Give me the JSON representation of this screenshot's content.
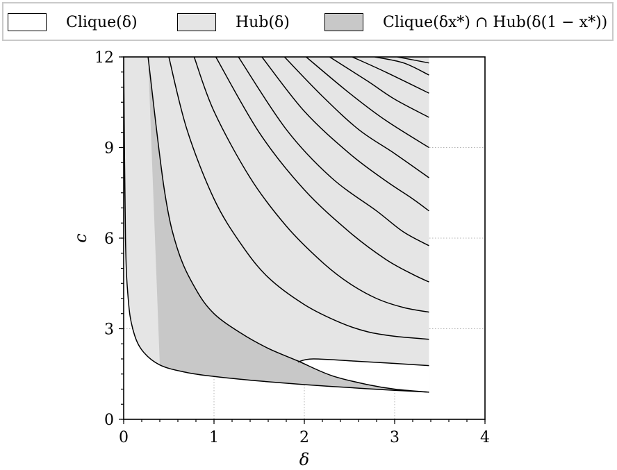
{
  "chart_data": {
    "type": "area",
    "xlabel": "δ",
    "ylabel": "c",
    "xlim": [
      0,
      4
    ],
    "ylim": [
      0,
      12
    ],
    "xticks": [
      0,
      1,
      2,
      3,
      4
    ],
    "yticks": [
      0,
      3,
      6,
      9,
      12
    ],
    "grid": true,
    "legend_position": "top",
    "legend": [
      {
        "label": "Clique(δ)",
        "color": "#ffffff"
      },
      {
        "label": "Hub(δ)",
        "color": "#e5e5e5"
      },
      {
        "label": "Clique(δx*) ∩ Hub(δ(1 − x*))",
        "color": "#c8c8c8"
      }
    ],
    "series": [
      {
        "values": [
          [
            0.0,
            12.0
          ],
          [
            0.02,
            6.0
          ],
          [
            0.05,
            4.0
          ],
          [
            0.1,
            3.0
          ],
          [
            0.2,
            2.3
          ],
          [
            0.4,
            1.8
          ],
          [
            0.7,
            1.55
          ],
          [
            1.0,
            1.42
          ],
          [
            1.5,
            1.27
          ],
          [
            2.0,
            1.15
          ],
          [
            2.5,
            1.05
          ],
          [
            3.0,
            0.96
          ],
          [
            3.38,
            0.9
          ]
        ]
      },
      {
        "values": [
          [
            0.27,
            12.0
          ],
          [
            0.45,
            7.6
          ],
          [
            0.6,
            5.6
          ],
          [
            0.8,
            4.3
          ],
          [
            1.0,
            3.5
          ],
          [
            1.3,
            2.85
          ],
          [
            1.6,
            2.35
          ],
          [
            1.93,
            1.93
          ],
          [
            2.3,
            1.45
          ],
          [
            2.7,
            1.15
          ],
          [
            3.0,
            1.0
          ],
          [
            3.38,
            0.9
          ]
        ]
      },
      {
        "values": [
          [
            1.93,
            1.9
          ],
          [
            2.1,
            2.0
          ],
          [
            2.6,
            1.92
          ],
          [
            3.0,
            1.85
          ],
          [
            3.38,
            1.78
          ]
        ]
      },
      {
        "values": [
          [
            0.5,
            12.0
          ],
          [
            0.7,
            9.6
          ],
          [
            1.0,
            7.3
          ],
          [
            1.3,
            5.8
          ],
          [
            1.6,
            4.7
          ],
          [
            2.0,
            3.8
          ],
          [
            2.4,
            3.2
          ],
          [
            2.7,
            2.9
          ],
          [
            3.0,
            2.75
          ],
          [
            3.38,
            2.65
          ]
        ]
      },
      {
        "values": [
          [
            0.78,
            12.0
          ],
          [
            1.0,
            10.2
          ],
          [
            1.4,
            8.0
          ],
          [
            1.8,
            6.4
          ],
          [
            2.2,
            5.2
          ],
          [
            2.5,
            4.5
          ],
          [
            2.8,
            4.0
          ],
          [
            3.1,
            3.7
          ],
          [
            3.38,
            3.55
          ]
        ]
      },
      {
        "values": [
          [
            1.02,
            12.0
          ],
          [
            1.5,
            9.5
          ],
          [
            2.0,
            7.6
          ],
          [
            2.5,
            6.2
          ],
          [
            2.9,
            5.3
          ],
          [
            3.2,
            4.8
          ],
          [
            3.38,
            4.55
          ]
        ]
      },
      {
        "values": [
          [
            1.27,
            12.0
          ],
          [
            1.8,
            9.6
          ],
          [
            2.3,
            8.0
          ],
          [
            2.8,
            6.9
          ],
          [
            3.1,
            6.2
          ],
          [
            3.38,
            5.75
          ]
        ]
      },
      {
        "values": [
          [
            1.53,
            12.0
          ],
          [
            2.0,
            10.2
          ],
          [
            2.5,
            8.8
          ],
          [
            2.9,
            7.9
          ],
          [
            3.2,
            7.3
          ],
          [
            3.38,
            6.9
          ]
        ]
      },
      {
        "values": [
          [
            1.78,
            12.0
          ],
          [
            2.2,
            10.7
          ],
          [
            2.6,
            9.6
          ],
          [
            3.0,
            8.8
          ],
          [
            3.38,
            8.0
          ]
        ]
      },
      {
        "values": [
          [
            2.02,
            12.0
          ],
          [
            2.5,
            10.8
          ],
          [
            2.9,
            9.9
          ],
          [
            3.38,
            9.0
          ]
        ]
      },
      {
        "values": [
          [
            2.28,
            12.0
          ],
          [
            2.7,
            11.2
          ],
          [
            3.0,
            10.6
          ],
          [
            3.38,
            10.0
          ]
        ]
      },
      {
        "values": [
          [
            2.53,
            12.0
          ],
          [
            2.9,
            11.5
          ],
          [
            3.38,
            10.8
          ]
        ]
      },
      {
        "values": [
          [
            2.78,
            12.0
          ],
          [
            3.1,
            11.8
          ],
          [
            3.38,
            11.4
          ]
        ]
      },
      {
        "values": [
          [
            3.03,
            12.0
          ],
          [
            3.38,
            11.8
          ]
        ]
      }
    ]
  }
}
